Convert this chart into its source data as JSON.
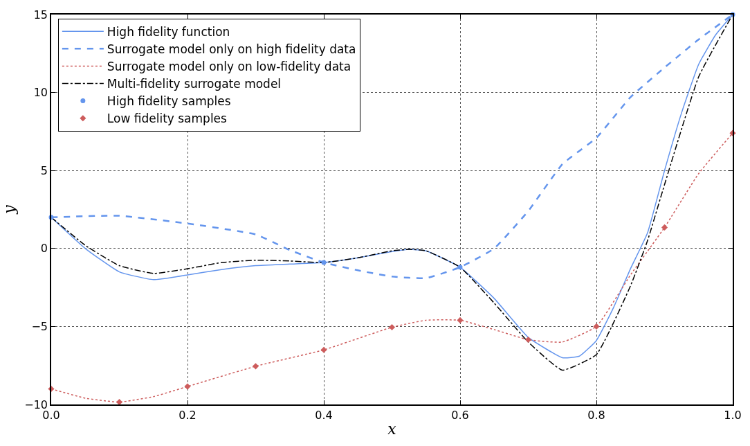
{
  "chart_data": {
    "type": "line",
    "xlabel": "x",
    "ylabel": "y",
    "xlim": [
      0,
      1
    ],
    "ylim": [
      -10,
      15
    ],
    "xticks": [
      {
        "value": 0,
        "label": "0.0"
      },
      0.2,
      0.4,
      0.6,
      0.8,
      {
        "value": 1,
        "label": "1.0"
      }
    ],
    "yticks": [
      {
        "value": -10,
        "label": "−10"
      },
      {
        "value": -5,
        "label": "−5"
      },
      0,
      5,
      10,
      15
    ],
    "grid": true,
    "legend": "top left",
    "series": [
      {
        "name": "High fidelity function",
        "line_style": "solid",
        "color": "#6495ed",
        "x": [
          0,
          0.05,
          0.1,
          0.15,
          0.2,
          0.25,
          0.3,
          0.35,
          0.4,
          0.45,
          0.5,
          0.525,
          0.55,
          0.6,
          0.65,
          0.7,
          0.75,
          0.775,
          0.8,
          0.825,
          0.85,
          0.875,
          0.9,
          0.925,
          0.95,
          0.975,
          1.0
        ],
        "values": [
          2.0,
          0.0,
          -1.5,
          -2.0,
          -1.7,
          -1.35,
          -1.1,
          -1.0,
          -0.9,
          -0.6,
          -0.2,
          -0.05,
          -0.15,
          -1.2,
          -3.2,
          -5.7,
          -7.0,
          -6.9,
          -5.9,
          -3.8,
          -1.3,
          1.0,
          5.0,
          8.7,
          11.8,
          13.7,
          15.0
        ]
      },
      {
        "name": "Surrogate model only on high fidelity data",
        "line_style": "dashed",
        "color": "#6495ed",
        "x": [
          0,
          0.1,
          0.2,
          0.3,
          0.35,
          0.4,
          0.45,
          0.5,
          0.55,
          0.6,
          0.65,
          0.7,
          0.75,
          0.8,
          0.85,
          0.9,
          0.95,
          1.0
        ],
        "values": [
          2.0,
          2.1,
          1.6,
          0.9,
          -0.1,
          -0.9,
          -1.4,
          -1.8,
          -1.9,
          -1.2,
          0.0,
          2.4,
          5.4,
          7.1,
          9.7,
          11.6,
          13.4,
          15.0
        ]
      },
      {
        "name": "Surrogate model only on low-fidelity data",
        "line_style": "dotted",
        "color": "#cd5c5c",
        "x": [
          0,
          0.05,
          0.1,
          0.15,
          0.2,
          0.3,
          0.4,
          0.5,
          0.55,
          0.6,
          0.65,
          0.7,
          0.75,
          0.8,
          0.85,
          0.9,
          0.95,
          1.0
        ],
        "values": [
          -9.0,
          -9.6,
          -9.85,
          -9.5,
          -8.85,
          -7.55,
          -6.5,
          -5.05,
          -4.6,
          -4.6,
          -5.2,
          -5.85,
          -6.0,
          -5.0,
          -1.7,
          1.35,
          4.8,
          7.4
        ]
      },
      {
        "name": "Multi-fidelity surrogate model",
        "line_style": "dashdot",
        "color": "#000000",
        "x": [
          0,
          0.05,
          0.1,
          0.15,
          0.2,
          0.25,
          0.3,
          0.35,
          0.4,
          0.45,
          0.5,
          0.525,
          0.55,
          0.6,
          0.65,
          0.7,
          0.75,
          0.8,
          0.85,
          0.875,
          0.9,
          0.95,
          1.0
        ],
        "values": [
          2.0,
          0.2,
          -1.1,
          -1.6,
          -1.3,
          -0.9,
          -0.75,
          -0.8,
          -0.9,
          -0.6,
          -0.15,
          -0.05,
          -0.15,
          -1.2,
          -3.5,
          -6.0,
          -7.8,
          -6.8,
          -2.4,
          0.5,
          4.1,
          11.0,
          15.0
        ]
      },
      {
        "name": "High fidelity samples",
        "type": "scatter",
        "marker": "circle",
        "color": "#6495ed",
        "x": [
          0,
          0.4,
          0.6,
          1.0
        ],
        "values": [
          2.0,
          -0.9,
          -1.2,
          15.0
        ]
      },
      {
        "name": "Low fidelity samples",
        "type": "scatter",
        "marker": "diamond",
        "color": "#cd5c5c",
        "x": [
          0,
          0.1,
          0.2,
          0.3,
          0.4,
          0.5,
          0.6,
          0.7,
          0.8,
          0.9,
          1.0
        ],
        "values": [
          -9.0,
          -9.85,
          -8.85,
          -7.55,
          -6.5,
          -5.05,
          -4.6,
          -5.85,
          -5.0,
          1.35,
          7.4
        ]
      }
    ]
  }
}
